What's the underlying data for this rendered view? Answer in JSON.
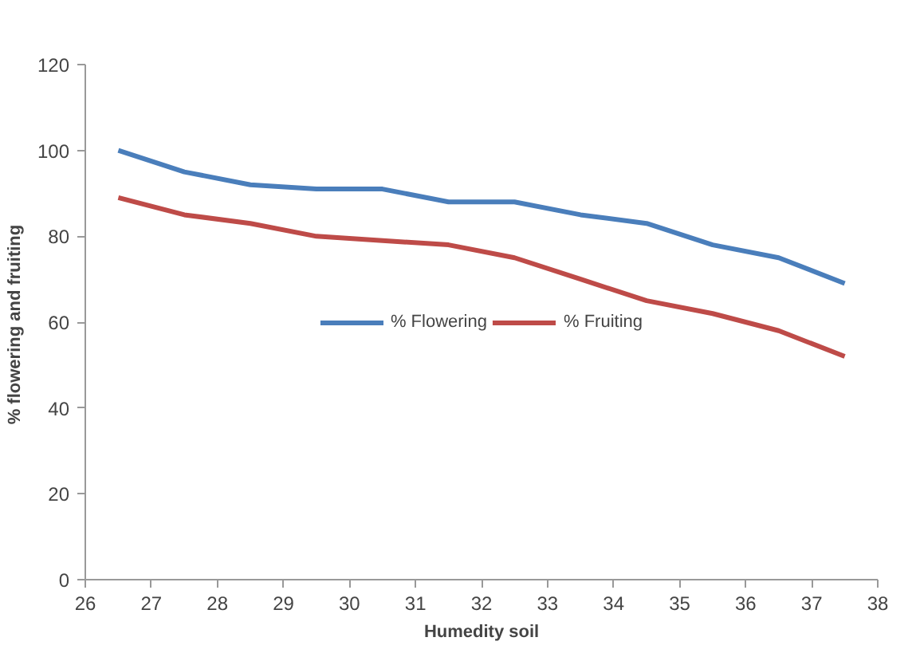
{
  "chart_data": {
    "type": "line",
    "xlabel": "Humedity soil",
    "ylabel": "%  flowering and fruiting",
    "x": [
      26.5,
      27.5,
      28.5,
      29.5,
      30.5,
      31.5,
      32.5,
      33.5,
      34.5,
      35.5,
      36.5,
      37.5
    ],
    "series": [
      {
        "name": "% Flowering",
        "color": "#4a7ebb",
        "values": [
          100,
          95,
          92,
          91,
          91,
          88,
          88,
          85,
          83,
          78,
          75,
          69
        ]
      },
      {
        "name": "% Fruiting",
        "color": "#be4b48",
        "values": [
          89,
          85,
          83,
          80,
          79,
          78,
          75,
          70,
          65,
          62,
          58,
          52
        ]
      }
    ],
    "xlim": [
      26,
      38
    ],
    "xticks": [
      26,
      27,
      28,
      29,
      30,
      31,
      32,
      33,
      34,
      35,
      36,
      37,
      38
    ],
    "ylim": [
      0,
      120
    ],
    "yticks": [
      0,
      20,
      40,
      60,
      80,
      100,
      120
    ],
    "grid": false,
    "legend": "center",
    "marker": "none",
    "line_style": "solid"
  }
}
